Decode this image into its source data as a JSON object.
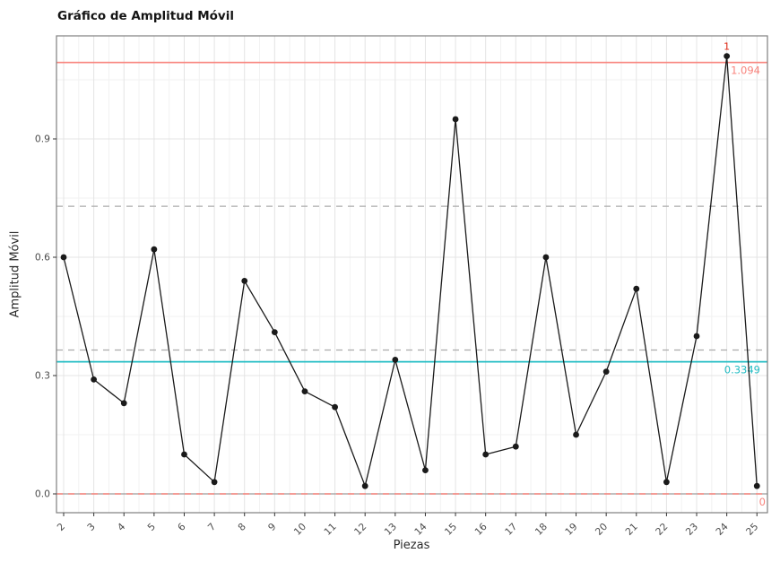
{
  "title": "Gráfico de Amplitud Móvil",
  "chart_data": {
    "type": "line",
    "title": "Gráfico de Amplitud Móvil",
    "xlabel": "Piezas",
    "ylabel": "Amplitud Móvil",
    "x": [
      2,
      3,
      4,
      5,
      6,
      7,
      8,
      9,
      10,
      11,
      12,
      13,
      14,
      15,
      16,
      17,
      18,
      19,
      20,
      21,
      22,
      23,
      24,
      25
    ],
    "values": [
      0.6,
      0.29,
      0.23,
      0.62,
      0.1,
      0.03,
      0.54,
      0.41,
      0.26,
      0.22,
      0.02,
      0.34,
      0.06,
      0.95,
      0.1,
      0.12,
      0.6,
      0.15,
      0.31,
      0.52,
      0.03,
      0.4,
      1.11,
      0.02
    ],
    "yticks": [
      0.0,
      0.3,
      0.6,
      0.9
    ],
    "ytick_labels": [
      "0.0",
      "0.3",
      "0.6",
      "0.9"
    ],
    "ylim": [
      -0.05,
      1.16
    ],
    "grid": true,
    "legend": false,
    "reference_lines": [
      {
        "id": "ucl",
        "value": 1.094,
        "label": "1.094",
        "style": "solid",
        "role": "limit"
      },
      {
        "id": "zone-upper",
        "value": 0.7293,
        "label": "",
        "style": "dashed",
        "role": "zone"
      },
      {
        "id": "zone-lower",
        "value": 0.3647,
        "label": "",
        "style": "dashed",
        "role": "zone"
      },
      {
        "id": "cl",
        "value": 0.3349,
        "label": "0.3349",
        "style": "solid",
        "role": "center"
      },
      {
        "id": "lcl",
        "value": 0.0,
        "label": "0",
        "style": "dashed",
        "role": "limit",
        "underlay": true
      }
    ],
    "point_labels": [
      {
        "x": 24,
        "text": "1",
        "role": "signal"
      }
    ],
    "colors": {
      "series": "#1a1a1a",
      "limit": "#f8837c",
      "center": "#23bdc4",
      "zone": "#ababab",
      "signal": "#e02814",
      "grid_major": "#e4e4e4",
      "grid_minor": "#f2f2f2",
      "panel_border": "#7f7f7f",
      "tick": "#333333",
      "lcl_underlay": "#9a9a9a"
    }
  }
}
